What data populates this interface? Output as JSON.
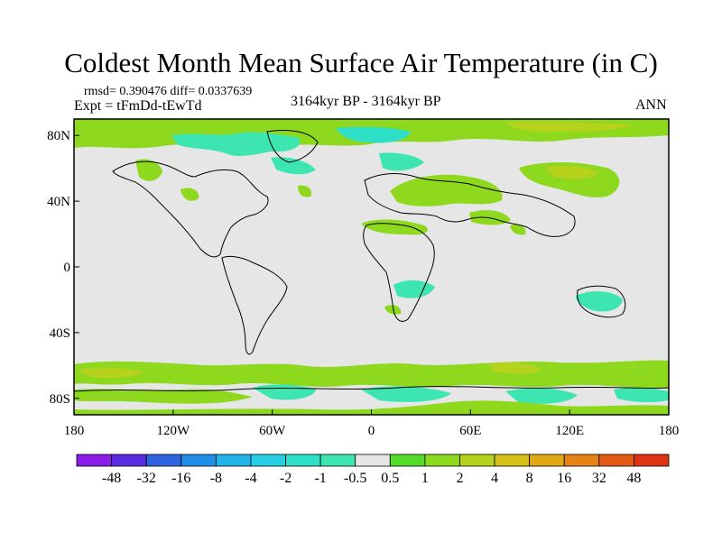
{
  "title": "Coldest Month Mean Surface Air Temperature (in C)",
  "stats": "rmsd= 0.390476 diff= 0.0337639",
  "experiment": "Expt = tFmDd-tEwTd",
  "period": "3164kyr BP - 3164kyr BP",
  "season": "ANN",
  "lat_ticks": [
    "80N",
    "40N",
    "0",
    "40S",
    "80S"
  ],
  "lon_ticks": [
    "180",
    "120W",
    "60W",
    "0",
    "60E",
    "120E",
    "180"
  ],
  "colorbar": {
    "labels": [
      "-48",
      "-32",
      "-16",
      "-8",
      "-4",
      "-2",
      "-1",
      "-0.5",
      "0.5",
      "1",
      "2",
      "4",
      "8",
      "16",
      "32",
      "48"
    ],
    "colors": [
      "#8a1ee8",
      "#5a2be0",
      "#2f63e0",
      "#1e8ee6",
      "#22b4ea",
      "#27cfe4",
      "#2fe0c8",
      "#3de6b0",
      "#e6e6e6",
      "#55dc2a",
      "#8ed81e",
      "#b6d21c",
      "#d6c21a",
      "#e2a818",
      "#e68316",
      "#e55a14",
      "#dd3312"
    ]
  },
  "colors": {
    "land_missing": "#e6e6e6",
    "warm_small": "#8ed81e",
    "warm_mid": "#b6d21c",
    "cool_small": "#3de6b0",
    "cool_mid": "#2fe0c8",
    "coastline": "#000000"
  }
}
